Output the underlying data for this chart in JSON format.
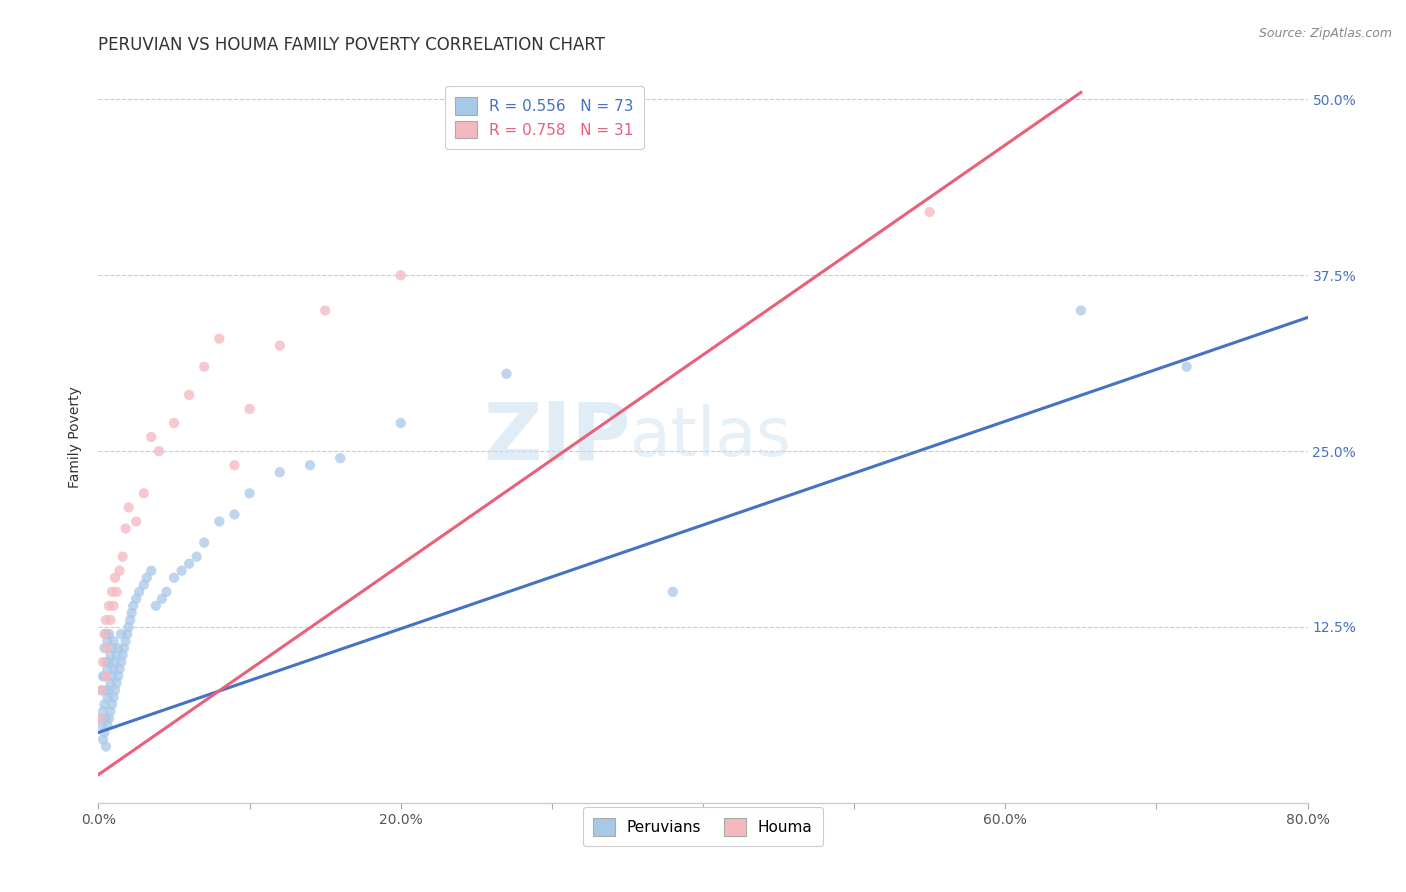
{
  "title": "PERUVIAN VS HOUMA FAMILY POVERTY CORRELATION CHART",
  "source_text": "Source: ZipAtlas.com",
  "ylabel": "Family Poverty",
  "xlim": [
    0.0,
    0.8
  ],
  "ylim": [
    0.0,
    0.52
  ],
  "xtick_labels": [
    "0.0%",
    "",
    "20.0%",
    "",
    "40.0%",
    "",
    "60.0%",
    "",
    "80.0%"
  ],
  "xtick_values": [
    0.0,
    0.1,
    0.2,
    0.3,
    0.4,
    0.5,
    0.6,
    0.7,
    0.8
  ],
  "ytick_labels": [
    "12.5%",
    "25.0%",
    "37.5%",
    "50.0%"
  ],
  "ytick_values": [
    0.125,
    0.25,
    0.375,
    0.5
  ],
  "peruvian_color": "#a8c8e8",
  "houma_color": "#f4b8c0",
  "peruvian_line_color": "#4472c4",
  "houma_line_color": "#e8607a",
  "R_peruvian": 0.556,
  "N_peruvian": 73,
  "R_houma": 0.758,
  "N_houma": 31,
  "title_fontsize": 12,
  "axis_label_fontsize": 10,
  "tick_fontsize": 10,
  "legend_fontsize": 11,
  "background_color": "#ffffff",
  "grid_color": "#cccccc",
  "blue_line_x0": 0.0,
  "blue_line_y0": 0.05,
  "blue_line_x1": 0.8,
  "blue_line_y1": 0.345,
  "pink_line_x0": 0.0,
  "pink_line_y0": 0.02,
  "pink_line_x1": 0.65,
  "pink_line_y1": 0.505,
  "peruvian_x": [
    0.001,
    0.002,
    0.002,
    0.003,
    0.003,
    0.003,
    0.004,
    0.004,
    0.004,
    0.004,
    0.005,
    0.005,
    0.005,
    0.005,
    0.005,
    0.006,
    0.006,
    0.006,
    0.006,
    0.007,
    0.007,
    0.007,
    0.007,
    0.008,
    0.008,
    0.008,
    0.009,
    0.009,
    0.009,
    0.01,
    0.01,
    0.01,
    0.011,
    0.011,
    0.012,
    0.012,
    0.013,
    0.013,
    0.014,
    0.015,
    0.015,
    0.016,
    0.017,
    0.018,
    0.019,
    0.02,
    0.021,
    0.022,
    0.023,
    0.025,
    0.027,
    0.03,
    0.032,
    0.035,
    0.038,
    0.042,
    0.045,
    0.05,
    0.055,
    0.06,
    0.065,
    0.07,
    0.08,
    0.09,
    0.1,
    0.12,
    0.14,
    0.16,
    0.2,
    0.27,
    0.38,
    0.65,
    0.72
  ],
  "peruvian_y": [
    0.06,
    0.055,
    0.08,
    0.045,
    0.065,
    0.09,
    0.05,
    0.07,
    0.09,
    0.11,
    0.04,
    0.06,
    0.08,
    0.1,
    0.12,
    0.055,
    0.075,
    0.095,
    0.115,
    0.06,
    0.08,
    0.1,
    0.12,
    0.065,
    0.085,
    0.105,
    0.07,
    0.09,
    0.11,
    0.075,
    0.095,
    0.115,
    0.08,
    0.1,
    0.085,
    0.105,
    0.09,
    0.11,
    0.095,
    0.1,
    0.12,
    0.105,
    0.11,
    0.115,
    0.12,
    0.125,
    0.13,
    0.135,
    0.14,
    0.145,
    0.15,
    0.155,
    0.16,
    0.165,
    0.14,
    0.145,
    0.15,
    0.16,
    0.165,
    0.17,
    0.175,
    0.185,
    0.2,
    0.205,
    0.22,
    0.235,
    0.24,
    0.245,
    0.27,
    0.305,
    0.15,
    0.35,
    0.31
  ],
  "houma_x": [
    0.001,
    0.002,
    0.003,
    0.004,
    0.005,
    0.005,
    0.006,
    0.007,
    0.008,
    0.009,
    0.01,
    0.011,
    0.012,
    0.014,
    0.016,
    0.018,
    0.02,
    0.025,
    0.03,
    0.035,
    0.04,
    0.05,
    0.06,
    0.07,
    0.08,
    0.09,
    0.1,
    0.12,
    0.15,
    0.2,
    0.55
  ],
  "houma_y": [
    0.06,
    0.08,
    0.1,
    0.12,
    0.09,
    0.13,
    0.11,
    0.14,
    0.13,
    0.15,
    0.14,
    0.16,
    0.15,
    0.165,
    0.175,
    0.195,
    0.21,
    0.2,
    0.22,
    0.26,
    0.25,
    0.27,
    0.29,
    0.31,
    0.33,
    0.24,
    0.28,
    0.325,
    0.35,
    0.375,
    0.42
  ]
}
